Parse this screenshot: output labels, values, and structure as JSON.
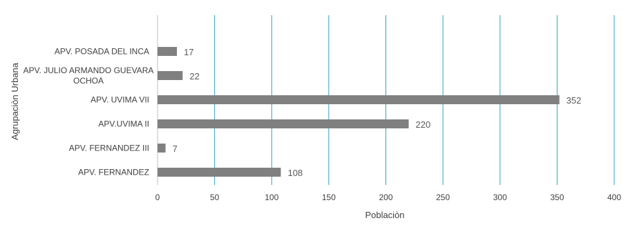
{
  "chart_data": {
    "type": "bar",
    "orientation": "horizontal",
    "categories": [
      "APV. POSADA DEL INCA",
      "APV. JULIO ARMANDO GUEVARA OCHOA",
      "APV. UVIMA VII",
      "APV.UVIMA II",
      "APV. FERNANDEZ III",
      "APV. FERNANDEZ"
    ],
    "category_lines": [
      [
        "APV. POSADA DEL INCA"
      ],
      [
        "APV. JULIO ARMANDO GUEVARA",
        "OCHOA"
      ],
      [
        "APV. UVIMA VII"
      ],
      [
        "APV.UVIMA II"
      ],
      [
        "APV. FERNANDEZ III"
      ],
      [
        "APV. FERNANDEZ"
      ]
    ],
    "values": [
      17,
      22,
      352,
      220,
      7,
      108
    ],
    "xlabel": "Poblaciòn",
    "ylabel": "Agrupaciòn Urbana",
    "xlim": [
      0,
      400
    ],
    "xticks": [
      0,
      50,
      100,
      150,
      200,
      250,
      300,
      350,
      400
    ],
    "grid": "vertical",
    "legend": "none",
    "colors": {
      "bar": "#808080",
      "grid": "#2aa4c0",
      "axis": "#bfbfbf"
    }
  }
}
